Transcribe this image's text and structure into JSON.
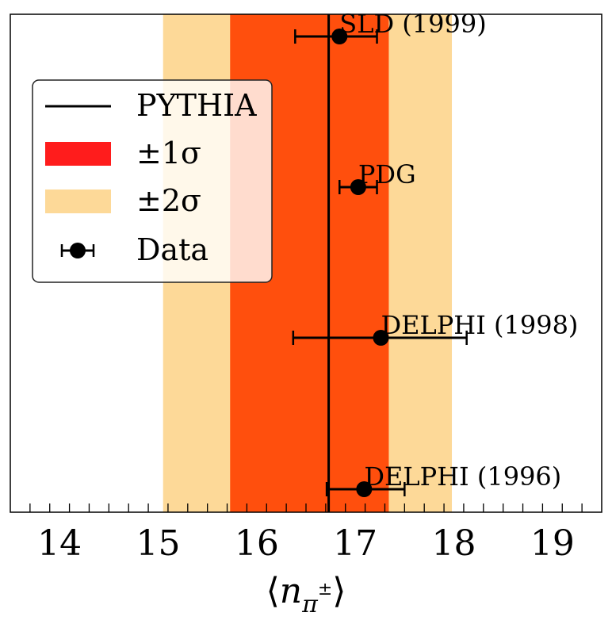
{
  "chart_data": {
    "type": "scatter",
    "title": "",
    "xlabel": "⟨n_π±⟩",
    "xlabel_parts": {
      "open": "⟨",
      "base": "n",
      "sub": "π",
      "sup": "±",
      "close": "⟩"
    },
    "ylabel": "",
    "xlim": [
      13.5,
      19.5
    ],
    "xticks": [
      14,
      15,
      16,
      17,
      18,
      19
    ],
    "xtick_labels": [
      "14",
      "15",
      "16",
      "17",
      "18",
      "19"
    ],
    "minor_step": 0.2,
    "pythia": {
      "name": "PYTHIA",
      "value": 16.73
    },
    "band_1sigma": {
      "name": "±1σ",
      "lo": 15.73,
      "hi": 17.34,
      "color": "#ff4f0d"
    },
    "band_2sigma": {
      "name": "±2σ",
      "lo": 15.05,
      "hi": 17.98,
      "color": "#fdd998"
    },
    "legend": {
      "position": "upper-left",
      "entries": [
        {
          "key": "pythia",
          "label": "PYTHIA"
        },
        {
          "key": "sigma1",
          "label": "±1σ"
        },
        {
          "key": "sigma2",
          "label": "±2σ"
        },
        {
          "key": "data",
          "label": "Data"
        }
      ]
    },
    "series": [
      {
        "name": "SLD (1999)",
        "x": 16.84,
        "xerr_lo": 0.45,
        "xerr_hi": 0.38,
        "row": 0
      },
      {
        "name": "PDG",
        "x": 17.03,
        "xerr_lo": 0.19,
        "xerr_hi": 0.19,
        "row": 1
      },
      {
        "name": "DELPHI (1998)",
        "x": 17.26,
        "xerr_lo": 0.89,
        "xerr_hi": 0.87,
        "row": 2
      },
      {
        "name": "DELPHI (1996)",
        "x": 17.09,
        "xerr_lo": 0.38,
        "xerr_hi": 0.41,
        "row": 3
      }
    ],
    "colors": {
      "axes": "#000000",
      "marker": "#000000",
      "legend_sigma1": "#ff1c1c",
      "legend_sigma2": "#fdd998"
    }
  }
}
